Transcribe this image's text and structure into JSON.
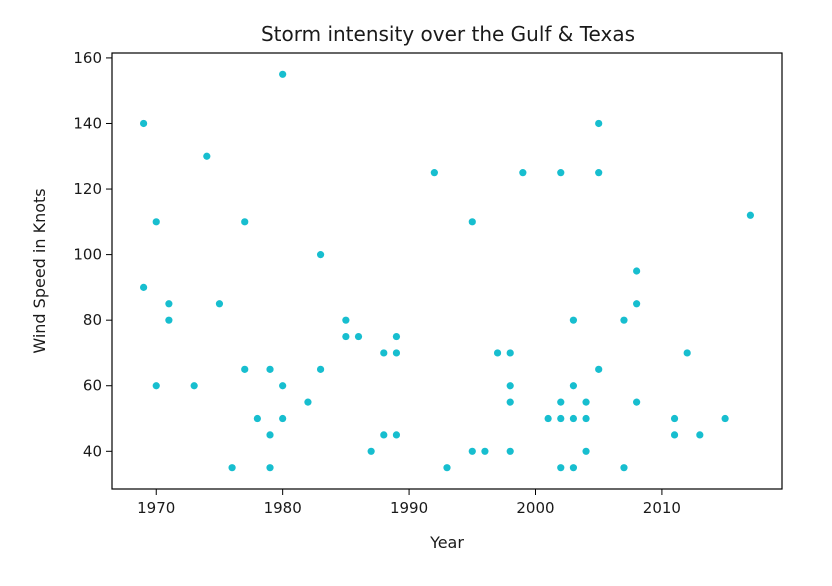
{
  "chart_data": {
    "type": "scatter",
    "title": "Storm intensity over the Gulf & Texas",
    "xlabel": "Year",
    "ylabel": "Wind Speed in Knots",
    "xlim": [
      1966.5,
      2019.5
    ],
    "ylim": [
      28.5,
      161.5
    ],
    "xticks": [
      1970,
      1980,
      1990,
      2000,
      2010
    ],
    "yticks": [
      40,
      60,
      80,
      100,
      120,
      140,
      160
    ],
    "grid": false,
    "legend": "none",
    "marker_color": "#17becf",
    "points": [
      {
        "x": 1969,
        "y": 140
      },
      {
        "x": 1969,
        "y": 90
      },
      {
        "x": 1970,
        "y": 110
      },
      {
        "x": 1970,
        "y": 60
      },
      {
        "x": 1971,
        "y": 85
      },
      {
        "x": 1971,
        "y": 80
      },
      {
        "x": 1973,
        "y": 60
      },
      {
        "x": 1974,
        "y": 130
      },
      {
        "x": 1975,
        "y": 85
      },
      {
        "x": 1976,
        "y": 35
      },
      {
        "x": 1977,
        "y": 110
      },
      {
        "x": 1977,
        "y": 65
      },
      {
        "x": 1978,
        "y": 50
      },
      {
        "x": 1979,
        "y": 65
      },
      {
        "x": 1979,
        "y": 45
      },
      {
        "x": 1979,
        "y": 35
      },
      {
        "x": 1980,
        "y": 155
      },
      {
        "x": 1980,
        "y": 60
      },
      {
        "x": 1980,
        "y": 50
      },
      {
        "x": 1982,
        "y": 55
      },
      {
        "x": 1983,
        "y": 100
      },
      {
        "x": 1983,
        "y": 65
      },
      {
        "x": 1985,
        "y": 80
      },
      {
        "x": 1985,
        "y": 75
      },
      {
        "x": 1986,
        "y": 75
      },
      {
        "x": 1987,
        "y": 40
      },
      {
        "x": 1988,
        "y": 70
      },
      {
        "x": 1988,
        "y": 45
      },
      {
        "x": 1989,
        "y": 75
      },
      {
        "x": 1989,
        "y": 70
      },
      {
        "x": 1989,
        "y": 45
      },
      {
        "x": 1992,
        "y": 125
      },
      {
        "x": 1993,
        "y": 35
      },
      {
        "x": 1995,
        "y": 110
      },
      {
        "x": 1995,
        "y": 40
      },
      {
        "x": 1996,
        "y": 40
      },
      {
        "x": 1997,
        "y": 70
      },
      {
        "x": 1998,
        "y": 70
      },
      {
        "x": 1998,
        "y": 60
      },
      {
        "x": 1998,
        "y": 55
      },
      {
        "x": 1998,
        "y": 40
      },
      {
        "x": 1999,
        "y": 125
      },
      {
        "x": 2001,
        "y": 50
      },
      {
        "x": 2002,
        "y": 125
      },
      {
        "x": 2002,
        "y": 55
      },
      {
        "x": 2002,
        "y": 50
      },
      {
        "x": 2002,
        "y": 35
      },
      {
        "x": 2003,
        "y": 80
      },
      {
        "x": 2003,
        "y": 60
      },
      {
        "x": 2003,
        "y": 50
      },
      {
        "x": 2003,
        "y": 35
      },
      {
        "x": 2004,
        "y": 55
      },
      {
        "x": 2004,
        "y": 50
      },
      {
        "x": 2004,
        "y": 40
      },
      {
        "x": 2005,
        "y": 140
      },
      {
        "x": 2005,
        "y": 125
      },
      {
        "x": 2005,
        "y": 65
      },
      {
        "x": 2007,
        "y": 80
      },
      {
        "x": 2007,
        "y": 35
      },
      {
        "x": 2008,
        "y": 95
      },
      {
        "x": 2008,
        "y": 85
      },
      {
        "x": 2008,
        "y": 55
      },
      {
        "x": 2011,
        "y": 50
      },
      {
        "x": 2011,
        "y": 45
      },
      {
        "x": 2012,
        "y": 70
      },
      {
        "x": 2013,
        "y": 45
      },
      {
        "x": 2015,
        "y": 50
      },
      {
        "x": 2017,
        "y": 112
      }
    ]
  }
}
